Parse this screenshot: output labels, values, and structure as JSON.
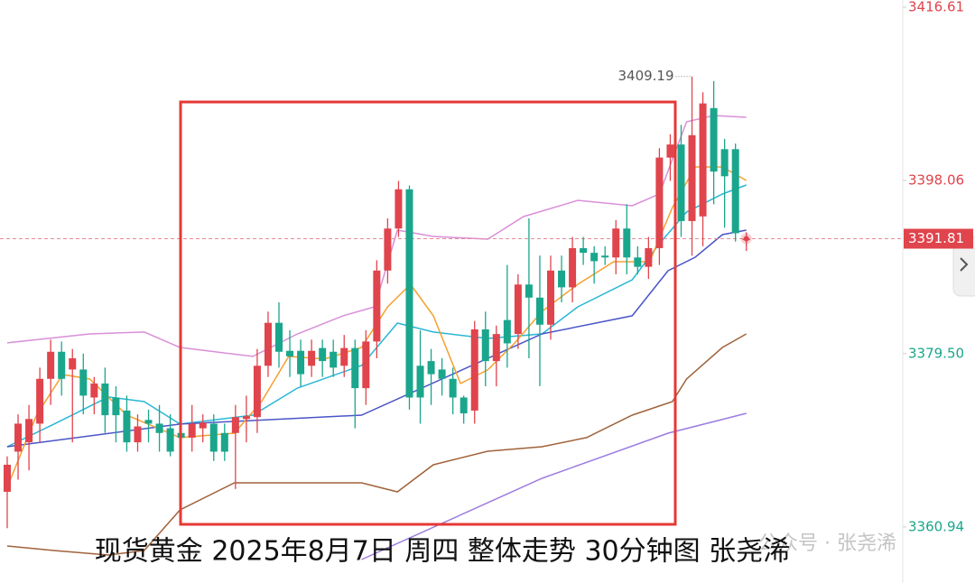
{
  "chart_data": {
    "type": "candlestick",
    "title": "现货黄金 2025年8月7日 周四 整体走势 30分钟图 张尧浠",
    "watermark": "公众号 · 张尧浠",
    "up_color": "#e0444c",
    "down_color": "#1aa68c",
    "ylim": [
      3354.93,
      3417.38
    ],
    "yticks": [
      3416.61,
      3398.06,
      {
        "value": 3379.5,
        "label": "3379.50"
      },
      3360.94
    ],
    "current_price": 3391.81,
    "open": [
      3364.7,
      3369.0,
      3370.0,
      3372.0,
      3376.8,
      3379.7,
      3377.8,
      3377.8,
      3374.8,
      3376.3,
      3374.8,
      3373.4,
      3370.0,
      3372.4,
      3372.0,
      3371.5,
      3371.0,
      3370.5,
      3371.5,
      3372.0,
      3371.0,
      3371.0,
      3372.5,
      3372.7,
      3378.2,
      3382.8,
      3379.8,
      3379.8,
      3378.2,
      3380.1,
      3379.7,
      3378.2,
      3380.1,
      3375.8,
      3380.8,
      3388.4,
      3392.9,
      3397.1,
      3378.2,
      3378.7,
      3377.8,
      3376.8,
      3374.8,
      3373.4,
      3382.1,
      3378.7,
      3383.1,
      3381.6,
      3386.9,
      3385.5,
      3382.6,
      3388.4,
      3386.6,
      3390.8,
      3390.3,
      3390.0,
      3389.8,
      3392.9,
      3389.8,
      3388.8,
      3390.8,
      3400.5,
      3401.9,
      3393.7,
      3394.2,
      3405.8,
      3401.4,
      3401.4,
      3391.8
    ],
    "high": [
      3368.5,
      3373,
      3374,
      3378,
      3381,
      3380.8,
      3380,
      3379.5,
      3377,
      3378,
      3376,
      3375,
      3373,
      3373.5,
      3374,
      3373,
      3372,
      3374,
      3373,
      3373,
      3372,
      3374,
      3375,
      3380,
      3384,
      3385,
      3382,
      3381,
      3381,
      3381,
      3381,
      3381.5,
      3381,
      3382,
      3389.5,
      3394,
      3398,
      3397.5,
      3382,
      3380,
      3379,
      3378,
      3375,
      3383,
      3384,
      3382.5,
      3389,
      3388,
      3394,
      3390,
      3390,
      3390,
      3392,
      3392,
      3391,
      3391,
      3393.8,
      3395.5,
      3391,
      3392,
      3401.5,
      3403,
      3404,
      3409.19,
      3407.5,
      3408.7,
      3402.5,
      3402,
      3392.5
    ],
    "low": [
      3360.8,
      3366,
      3367,
      3370,
      3374,
      3375,
      3370,
      3373,
      3373,
      3371,
      3370,
      3369,
      3369,
      3370,
      3369,
      3368.5,
      3369,
      3369,
      3370,
      3368,
      3368,
      3365,
      3370,
      3371,
      3377,
      3378,
      3377,
      3376,
      3377,
      3377,
      3377,
      3377,
      3371.5,
      3374,
      3379,
      3387,
      3392,
      3373.5,
      3372,
      3374,
      3375,
      3373,
      3372,
      3372,
      3376,
      3376,
      3378,
      3380,
      3379,
      3376,
      3381,
      3385,
      3385,
      3389,
      3387,
      3389,
      3388,
      3388,
      3388,
      3387.5,
      3389,
      3398,
      3392,
      3390,
      3391,
      3395.5,
      3393,
      3391.5,
      3390.5
    ],
    "close": [
      3367.6,
      3372.0,
      3372.5,
      3376.8,
      3379.7,
      3376.8,
      3379.0,
      3375.0,
      3376.3,
      3372.9,
      3372.9,
      3370.0,
      3371.7,
      3372.0,
      3371.0,
      3369.0,
      3370.5,
      3372.0,
      3372.1,
      3369.0,
      3369.0,
      3372.7,
      3372.8,
      3378.2,
      3382.8,
      3379.7,
      3379.2,
      3377.3,
      3379.8,
      3378.7,
      3378.0,
      3380.1,
      3375.8,
      3380.8,
      3388.4,
      3392.9,
      3397.1,
      3374.8,
      3374.8,
      3377.3,
      3376.8,
      3374.8,
      3373.1,
      3382.1,
      3378.7,
      3381.6,
      3380.6,
      3386.9,
      3385.5,
      3382.6,
      3388.4,
      3386.6,
      3390.8,
      3390.3,
      3389.4,
      3389.8,
      3392.9,
      3389.8,
      3388.8,
      3390.8,
      3400.5,
      3401.9,
      3393.7,
      3402.9,
      3406.3,
      3399.0,
      3398.5,
      3392.4,
      3391.81
    ],
    "lines": [
      {
        "color": "#d98fd8",
        "x": [
          0,
          7.6,
          12.6,
          15.9,
          22.6,
          26.7,
          30.9,
          33.8,
          35.9,
          39.2,
          44.2,
          47.5,
          52.5,
          57.5,
          60,
          62.5,
          65,
          68
        ],
        "values": [
          3380.65,
          3381.61,
          3381.81,
          3380.16,
          3379.2,
          3381.61,
          3383.55,
          3384.51,
          3392.73,
          3392.05,
          3391.76,
          3394.18,
          3395.92,
          3395.34,
          3396.6,
          3404.33,
          3405.01,
          3404.81
        ]
      },
      {
        "color": "#29b6d6",
        "x": [
          0,
          4.3,
          9.3,
          12.6,
          15.9,
          22.6,
          26.7,
          32.6,
          35.9,
          39.2,
          44.2,
          49.2,
          52.5,
          57.5,
          60,
          62.5,
          65.8,
          68
        ],
        "values": [
          3369.53,
          3371.95,
          3374.85,
          3374.36,
          3371.95,
          3372.91,
          3375.81,
          3378.23,
          3382.77,
          3381.81,
          3381.13,
          3381.61,
          3384.51,
          3387.41,
          3391.28,
          3394.66,
          3396.6,
          3397.56
        ]
      },
      {
        "color": "#a0623a",
        "x": [
          0,
          4.3,
          9.3,
          12.6,
          15.9,
          20.9,
          26.7,
          32.6,
          35.9,
          39.2,
          44.2,
          49.2,
          53.3,
          57.5,
          61.2,
          62.5,
          65.8,
          68
        ],
        "values": [
          3358.89,
          3358.41,
          3357.93,
          3358.41,
          3362.76,
          3365.66,
          3365.66,
          3365.66,
          3364.69,
          3367.59,
          3369.04,
          3369.53,
          3370.5,
          3372.91,
          3374.36,
          3376.78,
          3380.16,
          3381.61
        ]
      },
      {
        "color": "#9b7ce0",
        "x": [
          32.6,
          49.2,
          60.8,
          68
        ],
        "values": [
          3357.44,
          3366.14,
          3370.98,
          3373.1
        ]
      },
      {
        "color": "#4a55c8",
        "x": [
          0,
          15.9,
          32.6,
          49.2,
          57.5,
          60.8,
          63.3,
          65.8,
          68
        ],
        "values": [
          3369.53,
          3371.95,
          3372.91,
          3381.61,
          3383.55,
          3388.38,
          3389.83,
          3392.25,
          3392.73
        ]
      },
      {
        "color": "#f5a030",
        "x": [
          0,
          2.7,
          5.1,
          7.6,
          11,
          15.9,
          20.9,
          23.4,
          25.9,
          29.2,
          32.6,
          35,
          37.1,
          39.2,
          41.7,
          44.2,
          46.7,
          49.2,
          52.5,
          55.8,
          59.1,
          61.2,
          63.3,
          65.8,
          68
        ],
        "values": [
          3365.18,
          3372.91,
          3377.26,
          3376.78,
          3372.91,
          3370.5,
          3370.98,
          3374.36,
          3379.2,
          3378.91,
          3380.16,
          3384.51,
          3386.93,
          3383.55,
          3376.3,
          3377.75,
          3380.65,
          3384.03,
          3386.93,
          3389.35,
          3389.35,
          3395.15,
          3399.5,
          3399.5,
          3398.05
        ]
      }
    ]
  }
}
